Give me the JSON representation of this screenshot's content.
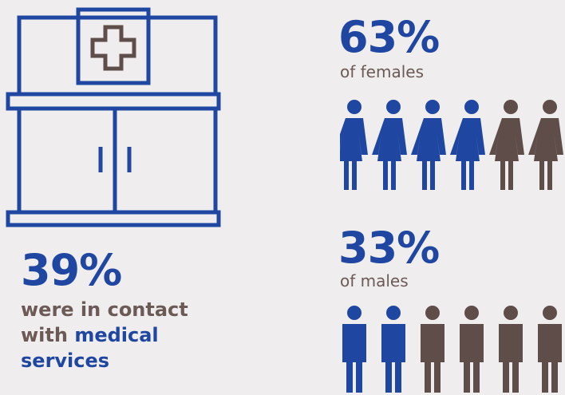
{
  "colors": {
    "accent": "#1f47a1",
    "muted": "#5e4d49",
    "background": "#efedee"
  },
  "left": {
    "icon": "medical-cabinet-icon",
    "stat": "39%",
    "desc_prefix": "were in contact with ",
    "desc_highlight": "medical services"
  },
  "females": {
    "stat": "63%",
    "label": "of females",
    "icon": "female-person-icon",
    "total": 6,
    "highlighted": 4
  },
  "males": {
    "stat": "33%",
    "label": "of males",
    "icon": "male-person-icon",
    "total": 6,
    "highlighted": 2
  }
}
